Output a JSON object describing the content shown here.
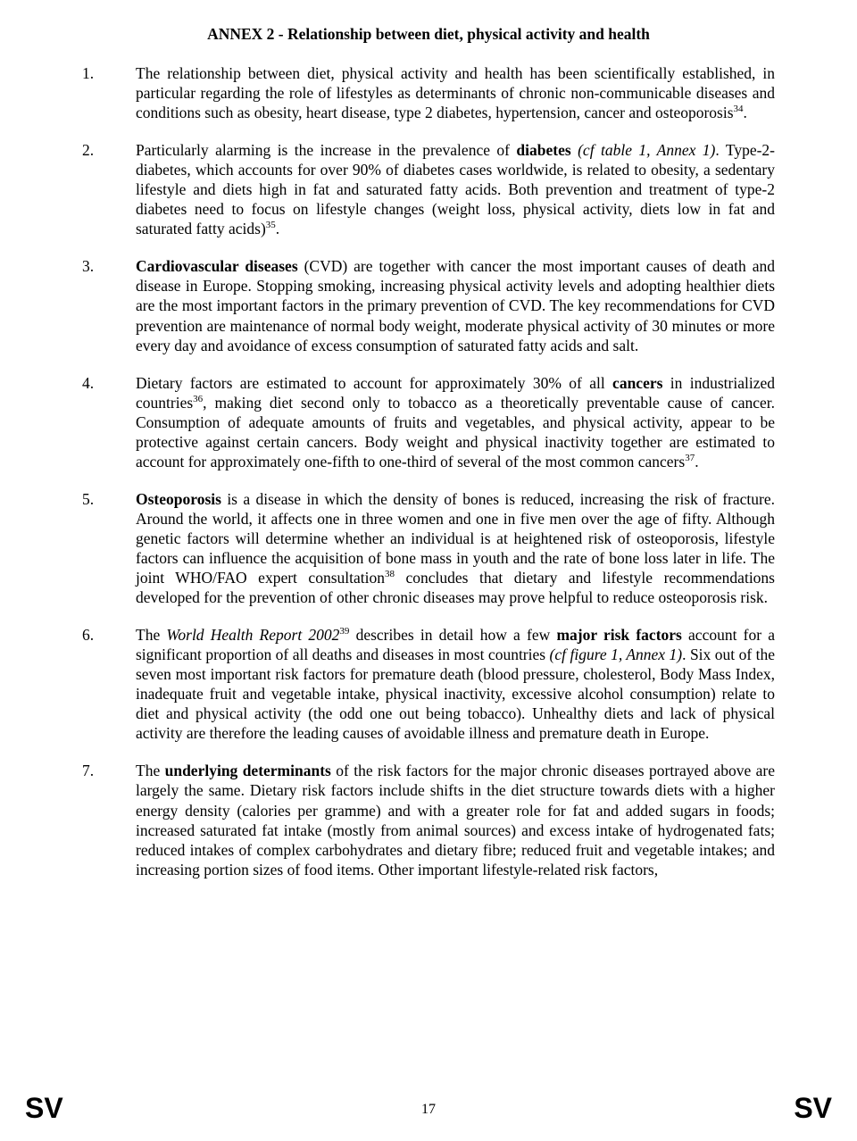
{
  "title": "ANNEX 2 - Relationship between diet, physical activity and health",
  "items": [
    {
      "num": "1.",
      "html": "The relationship between diet, physical activity and health has been scientifically established, in particular regarding the role of lifestyles as determinants of chronic non-communicable diseases and conditions such as obesity, heart disease, type 2 diabetes, hypertension, cancer and osteoporosis<sup>34</sup>."
    },
    {
      "num": "2.",
      "html": "Particularly alarming is the increase in the prevalence of <b>diabetes</b> <i>(cf table 1, Annex 1)</i>. Type-2-diabetes, which accounts for over 90% of diabetes cases worldwide, is related to obesity, a sedentary lifestyle and diets high in fat and saturated fatty acids. Both prevention and treatment of type-2 diabetes need to focus on lifestyle changes (weight loss, physical activity, diets low in fat and saturated fatty acids)<sup>35</sup>."
    },
    {
      "num": "3.",
      "html": "<b>Cardiovascular diseases</b> (CVD) are together with cancer the most important causes of death and disease in Europe. Stopping smoking, increasing physical activity levels and adopting healthier diets are the most important factors in the primary prevention of CVD. The key recommendations for CVD prevention are maintenance of normal body weight, moderate physical activity of 30 minutes or more every day and avoidance of excess consumption of saturated fatty acids and salt."
    },
    {
      "num": "4.",
      "html": "Dietary factors are estimated to account for approximately 30% of all <b>cancers</b> in industrialized countries<sup>36</sup>, making diet second only to tobacco as a theoretically preventable cause of cancer. Consumption of adequate amounts of fruits and vegetables, and physical activity, appear to be protective against certain cancers. Body weight and physical inactivity together are estimated to account for approximately one-fifth to one-third of several of the most common cancers<sup>37</sup>."
    },
    {
      "num": "5.",
      "html": "<b>Osteoporosis</b> is a disease in which the density of bones is reduced, increasing the risk of fracture. Around the world, it affects one in three women and one in five men over the age of fifty. Although genetic factors will determine whether an individual is at heightened risk of osteoporosis, lifestyle factors can influence the acquisition of bone mass in youth and the rate of bone loss later in life. The joint WHO/FAO expert consultation<sup>38</sup> concludes that dietary and lifestyle recommendations developed for the prevention of other chronic diseases may prove helpful to reduce osteoporosis risk."
    },
    {
      "num": "6.",
      "html": "The <i>World Health Report 2002</i><sup>39</sup> describes in detail how a few <b>major risk factors</b> account for a significant proportion of all deaths and diseases in most countries <i>(cf figure 1, Annex 1)</i>. Six out of the seven most important risk factors for premature death (blood pressure, cholesterol, Body Mass Index, inadequate fruit and vegetable intake, physical inactivity, excessive alcohol consumption) relate to diet and physical activity (the odd one out being tobacco). Unhealthy diets and lack of physical activity are therefore the leading causes of avoidable illness and premature death in Europe."
    },
    {
      "num": "7.",
      "html": "The <b>underlying determinants</b> of the risk factors for the major chronic diseases portrayed above are largely the same. Dietary risk factors include shifts in the diet structure towards diets with a higher energy density (calories per gramme) and with a greater role for fat and added sugars in foods; increased saturated fat intake (mostly from animal sources) and excess intake of hydrogenated fats; reduced intakes of complex carbohydrates and dietary fibre; reduced fruit and vegetable intakes; and increasing portion sizes of food items. Other important lifestyle-related risk factors,"
    }
  ],
  "footer": {
    "left": "SV",
    "right": "SV",
    "page": "17"
  }
}
